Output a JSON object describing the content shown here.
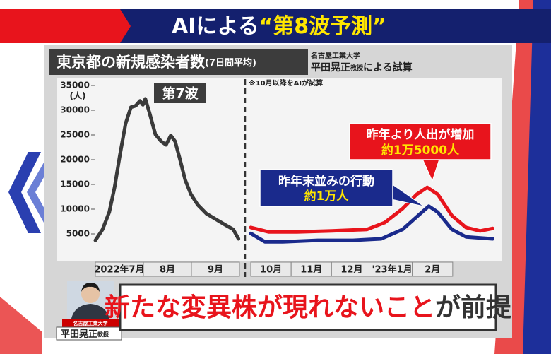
{
  "header": {
    "title_prefix": "AIによる",
    "title_highlight": "“第8波予測”"
  },
  "chart_data": {
    "type": "line",
    "title": "東京都の新規感染者数",
    "subtitle": "(7日間平均)",
    "source": {
      "org": "名古屋工業大学",
      "name": "平田晃正",
      "role": "教授",
      "suffix": "による試算"
    },
    "note": "※10月以降をAIが試算",
    "ylabel": "(人)",
    "xlim": [
      0,
      9
    ],
    "xticks": [
      {
        "value": 0.5,
        "label": "2022年7月"
      },
      {
        "value": 1.5,
        "label": "8月"
      },
      {
        "value": 2.5,
        "label": "9月"
      },
      {
        "value": 3.5,
        "label": "10月"
      },
      {
        "value": 4.5,
        "label": "11月"
      },
      {
        "value": 5.5,
        "label": "12月"
      },
      {
        "value": 6.5,
        "label": "'23年1月"
      },
      {
        "value": 7.5,
        "label": "2月"
      }
    ],
    "ylim": [
      0,
      36000
    ],
    "yticks": [
      5000,
      10000,
      15000,
      20000,
      25000,
      30000,
      35000
    ],
    "series": [
      {
        "name": "第7波",
        "color": "#3a3a3a",
        "x": [
          0,
          0.15,
          0.29,
          0.4,
          0.51,
          0.63,
          0.74,
          0.84,
          0.93,
          0.99,
          1.04,
          1.13,
          1.25,
          1.37,
          1.47,
          1.57,
          1.66,
          1.76,
          1.87,
          1.99,
          2.13,
          2.31,
          2.5,
          2.69,
          2.87,
          2.98
        ],
        "values": [
          3700,
          5900,
          9400,
          14400,
          20900,
          27300,
          30600,
          30900,
          31900,
          31100,
          32300,
          29400,
          25100,
          23700,
          23000,
          24900,
          23700,
          20100,
          15900,
          13000,
          10900,
          9100,
          8000,
          6900,
          5900,
          4000
        ]
      },
      {
        "name": "昨年より人出が増加",
        "note": "約1万5000人",
        "color": "#e8141c",
        "x": [
          3.0,
          3.44,
          4.14,
          5.01,
          5.88,
          6.32,
          6.76,
          7.11,
          7.37,
          7.63,
          7.98,
          8.33,
          8.68,
          8.99
        ],
        "values": [
          6300,
          5400,
          5400,
          5600,
          5900,
          7300,
          10100,
          13000,
          14400,
          13000,
          8700,
          6300,
          5600,
          6100
        ]
      },
      {
        "name": "昨年末並みの行動",
        "note": "約1万人",
        "color": "#1a2a8c",
        "x": [
          3.0,
          3.35,
          3.79,
          4.66,
          5.53,
          6.23,
          6.76,
          7.2,
          7.41,
          7.63,
          7.98,
          8.33,
          8.99
        ],
        "values": [
          5100,
          3400,
          3400,
          3700,
          3700,
          4000,
          5900,
          9100,
          10600,
          9400,
          5900,
          4400,
          4000
        ]
      }
    ]
  },
  "footer": {
    "caption_org": "名古屋工業大学",
    "caption_name": "平田晃正",
    "caption_role": "教授",
    "message_red": "新たな変異株が現れないこと",
    "message_dark": "が前提"
  }
}
